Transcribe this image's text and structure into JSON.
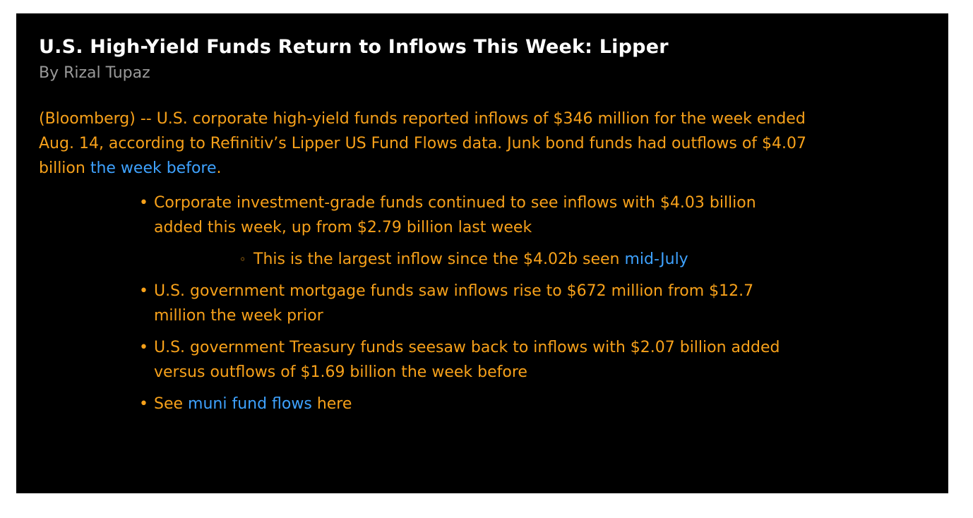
{
  "article": {
    "headline": "U.S. High-Yield Funds Return to Inflows This Week: Lipper",
    "byline": "By Rizal Tupaz",
    "lead": {
      "text_before_link": "(Bloomberg) -- U.S. corporate high-yield funds reported inflows of $346 million for the week ended Aug. 14, according to Refinitiv’s Lipper US Fund Flows data. Junk bond funds had outflows of $4.07 billion ",
      "link_text": "the week before",
      "text_after_link": "."
    },
    "bullet_1": {
      "text": "Corporate investment-grade funds continued to see inflows with $4.03 billion added this week, up from $2.79 billion last week",
      "sub": {
        "text_before_link": "This is the largest inflow since the $4.02b seen ",
        "link_text": "mid-July"
      }
    },
    "bullet_2": {
      "text": "U.S. government mortgage funds saw inflows rise to $672 million from $12.7 million the week prior"
    },
    "bullet_3": {
      "text": "U.S. government Treasury funds seesaw back to inflows with $2.07 billion added versus outflows of $1.69 billion the week before"
    },
    "bullet_4": {
      "text_before_link": "See ",
      "link_text": "muni fund flows",
      "text_after_link": " here"
    },
    "bullet_glyph": "•",
    "sub_bullet_glyph": "◦"
  },
  "colors": {
    "background": "#000000",
    "headline": "#ffffff",
    "byline": "#9a9a9a",
    "body_text": "#f7a11a",
    "link": "#3ea2ff"
  }
}
